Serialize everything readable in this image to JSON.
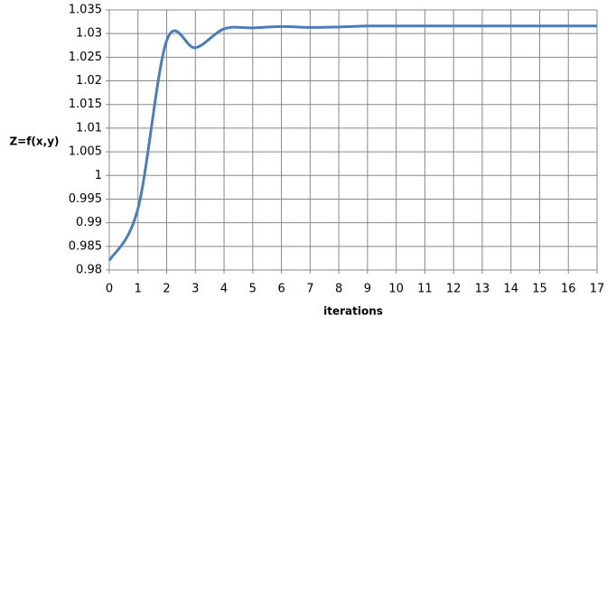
{
  "chart_data": {
    "type": "line",
    "x_label": "iterations",
    "y_label": "Z=f(x,y)",
    "x": [
      0,
      1,
      2,
      3,
      4,
      5,
      6,
      7,
      8,
      9,
      10,
      11,
      12,
      13,
      14,
      15,
      16,
      17
    ],
    "series": [
      {
        "color": "#4a7ebb",
        "values": [
          0.982,
          0.993,
          1.0285,
          1.027,
          1.031,
          1.0312,
          1.0315,
          1.0313,
          1.0314,
          1.0316,
          1.0316,
          1.0316,
          1.0316,
          1.0316,
          1.0316,
          1.0316,
          1.0316,
          1.0316
        ]
      }
    ],
    "xlim": [
      0,
      17
    ],
    "xticks": [
      0,
      1,
      2,
      3,
      4,
      5,
      6,
      7,
      8,
      9,
      10,
      11,
      12,
      13,
      14,
      15,
      16,
      17
    ],
    "ylim": [
      0.98,
      1.035
    ],
    "yticks": [
      0.98,
      0.985,
      0.99,
      0.995,
      1,
      1.005,
      1.01,
      1.015,
      1.02,
      1.025,
      1.03,
      1.035
    ],
    "grid": true
  }
}
